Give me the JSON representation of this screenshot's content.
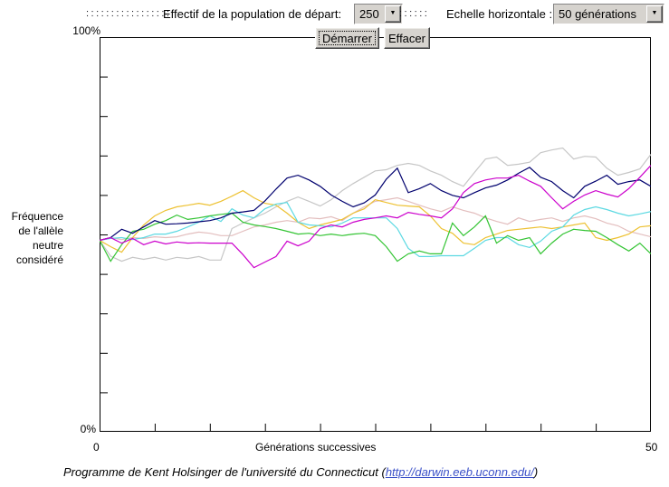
{
  "controls": {
    "dots_left": ":::::::::::::::::",
    "population_label": "Effectif de la population de départ:",
    "population_value": "250",
    "dots_mid": "::::::",
    "scale_label": "Echelle horizontale :",
    "scale_value": "50 générations",
    "start_button": "Démarrer",
    "clear_button": "Effacer",
    "chevron_glyph": "▼"
  },
  "chart_data": {
    "type": "line",
    "title": "",
    "xlabel": "Générations successives",
    "ylabel": "Fréquence de l'allèle neutre considéré",
    "ylabel_lines": [
      "Fréquence",
      "de l'allèle",
      "neutre",
      "considéré"
    ],
    "xlim": [
      0,
      50
    ],
    "ylim": [
      0,
      100
    ],
    "x_ticks_every": 5,
    "y_ticks_every": 10,
    "grid": false,
    "legend": "none",
    "y_axis_labels": {
      "top": "100%",
      "bottom": "0%"
    },
    "x_axis_labels": {
      "left": "0",
      "right": "50"
    },
    "axis_color": "#000000",
    "series": [
      {
        "name": "pink",
        "color": "#e3bebe",
        "values": [
          48.5,
          49.2,
          48.7,
          49.2,
          49.0,
          49.4,
          49.2,
          49.4,
          50.1,
          50.6,
          50.3,
          49.7,
          49.7,
          50.8,
          51.9,
          52.4,
          53.1,
          53.5,
          53.1,
          54.2,
          54.0,
          54.5,
          53.5,
          55.4,
          57.0,
          58.4,
          58.8,
          59.3,
          58.4,
          57.4,
          56.5,
          55.8,
          57.0,
          56.1,
          55.4,
          54.2,
          53.3,
          52.6,
          54.2,
          53.3,
          53.8,
          54.2,
          53.3,
          54.2,
          54.7,
          54.0,
          52.9,
          52.2,
          50.8,
          50.1,
          49.4
        ]
      },
      {
        "name": "silver",
        "color": "#c6c6c6",
        "values": [
          48.5,
          44.5,
          43.2,
          44.2,
          43.7,
          44.2,
          43.5,
          44.2,
          43.9,
          44.4,
          43.5,
          43.5,
          51.5,
          52.9,
          54.2,
          55.4,
          57.0,
          58.4,
          59.5,
          58.4,
          57.2,
          58.8,
          61.1,
          62.9,
          64.5,
          66.1,
          66.4,
          67.5,
          68.0,
          67.5,
          66.1,
          65.0,
          63.4,
          62.2,
          65.7,
          69.1,
          69.6,
          67.5,
          67.8,
          68.3,
          70.7,
          71.4,
          71.9,
          69.1,
          69.8,
          69.6,
          66.8,
          65.0,
          65.7,
          66.6,
          70.3
        ]
      },
      {
        "name": "orange",
        "color": "#edc131",
        "values": [
          48.5,
          46.9,
          45.5,
          49.2,
          52.4,
          54.7,
          56.1,
          57.0,
          57.4,
          57.9,
          57.4,
          58.4,
          59.7,
          61.1,
          59.3,
          57.9,
          57.4,
          55.4,
          53.1,
          51.5,
          52.4,
          53.1,
          53.8,
          55.4,
          56.5,
          58.8,
          58.1,
          57.4,
          57.2,
          57.0,
          54.7,
          51.5,
          50.3,
          47.8,
          47.4,
          49.2,
          50.1,
          51.0,
          51.3,
          51.6,
          51.9,
          51.5,
          51.9,
          52.4,
          52.9,
          49.2,
          48.5,
          49.2,
          50.1,
          51.9,
          52.2
        ]
      },
      {
        "name": "cyan",
        "color": "#5cd9e2",
        "values": [
          48.5,
          49.0,
          49.2,
          48.7,
          49.2,
          50.1,
          50.1,
          50.8,
          51.9,
          53.1,
          54.7,
          53.3,
          56.5,
          54.9,
          54.2,
          56.5,
          57.7,
          58.1,
          53.1,
          52.4,
          52.2,
          51.9,
          52.9,
          54.2,
          54.2,
          54.2,
          54.2,
          51.5,
          46.5,
          44.4,
          44.4,
          44.6,
          44.6,
          44.6,
          46.5,
          48.5,
          49.2,
          49.2,
          47.4,
          46.7,
          48.3,
          50.8,
          51.9,
          54.9,
          56.3,
          57.0,
          56.3,
          55.4,
          54.7,
          55.2,
          55.8
        ]
      },
      {
        "name": "green",
        "color": "#33c433",
        "values": [
          48.5,
          43.2,
          47.4,
          50.8,
          51.3,
          52.6,
          53.5,
          54.9,
          53.8,
          54.2,
          54.7,
          55.1,
          55.4,
          53.1,
          52.4,
          52.0,
          51.5,
          50.8,
          50.1,
          50.3,
          49.7,
          50.1,
          49.7,
          50.1,
          50.3,
          49.7,
          46.9,
          43.2,
          45.1,
          45.8,
          45.1,
          45.1,
          52.9,
          49.7,
          51.9,
          54.7,
          47.8,
          49.7,
          48.5,
          49.2,
          45.1,
          47.8,
          50.1,
          51.3,
          51.0,
          50.8,
          49.2,
          47.4,
          45.8,
          47.8,
          45.1
        ]
      },
      {
        "name": "navy",
        "color": "#00006e",
        "values": [
          48.5,
          49.2,
          51.3,
          50.3,
          51.9,
          53.5,
          52.6,
          52.7,
          52.9,
          53.2,
          53.5,
          54.2,
          55.4,
          55.7,
          56.1,
          58.5,
          61.5,
          64.3,
          65.0,
          63.8,
          62.2,
          60.0,
          58.4,
          57.0,
          58.0,
          60.0,
          64.0,
          66.8,
          60.6,
          61.6,
          62.9,
          61.1,
          59.9,
          59.3,
          60.6,
          61.8,
          62.5,
          63.8,
          65.5,
          67.0,
          64.5,
          63.4,
          61.1,
          59.3,
          62.2,
          63.5,
          65.0,
          62.7,
          63.4,
          63.8,
          62.2
        ]
      },
      {
        "name": "magenta",
        "color": "#cc00cc",
        "values": [
          48.5,
          49.2,
          47.8,
          49.0,
          47.4,
          48.3,
          47.6,
          48.1,
          47.8,
          47.9,
          47.8,
          47.8,
          47.8,
          44.9,
          41.6,
          43.0,
          44.4,
          48.3,
          47.1,
          48.3,
          51.5,
          52.4,
          51.9,
          53.1,
          53.8,
          54.2,
          54.7,
          54.2,
          55.6,
          55.1,
          54.7,
          54.2,
          56.5,
          60.6,
          62.9,
          63.8,
          64.3,
          64.3,
          65.0,
          63.5,
          62.2,
          59.3,
          56.5,
          58.4,
          60.0,
          61.1,
          60.2,
          59.5,
          61.6,
          64.5,
          67.5
        ]
      }
    ]
  },
  "footer": {
    "text_before_link": "Programme de Kent Holsinger de l'université du Connecticut (",
    "link_text": "http://darwin.eeb.uconn.edu/",
    "text_after_link": ")"
  }
}
